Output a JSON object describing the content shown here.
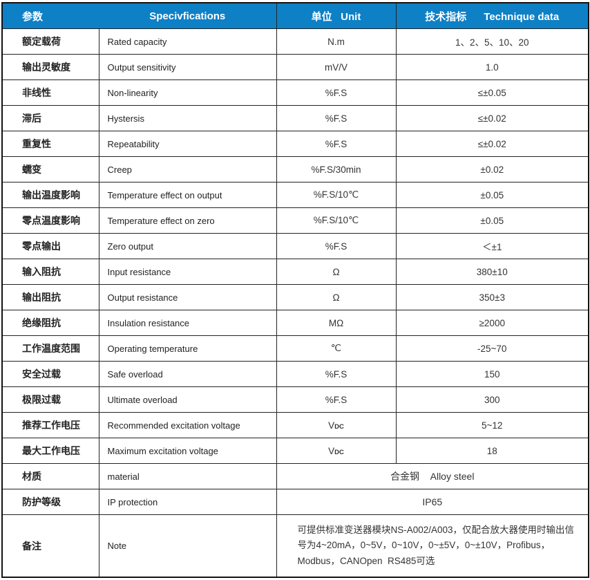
{
  "colors": {
    "header_bg": "#0E80C6",
    "header_text": "#FFFFFF",
    "border": "#1A1A1A",
    "body_text": "#333333"
  },
  "header": {
    "param": "参数",
    "spec": "Specivfications",
    "unit": "单位   Unit",
    "data": "技术指标      Technique data"
  },
  "rows": [
    {
      "cn": "额定载荷",
      "en": "Rated capacity",
      "unit": "N.m",
      "unit_sub": "",
      "value": "1、2、5、10、20"
    },
    {
      "cn": "输出灵敏度",
      "en": "Output sensitivity",
      "unit": "mV/V",
      "unit_sub": "",
      "value": "1.0"
    },
    {
      "cn": "非线性",
      "en": "Non-linearity",
      "unit": "%F.S",
      "unit_sub": "",
      "value": "≤±0.05"
    },
    {
      "cn": "滞后",
      "en": "Hystersis",
      "unit": "%F.S",
      "unit_sub": "",
      "value": "≤±0.02"
    },
    {
      "cn": "重复性",
      "en": "Repeatability",
      "unit": "%F.S",
      "unit_sub": "",
      "value": "≤±0.02"
    },
    {
      "cn": "蠕变",
      "en": "Creep",
      "unit": "%F.S/30min",
      "unit_sub": "",
      "value": "±0.02"
    },
    {
      "cn": "输出温度影响",
      "en": "Temperature effect on output",
      "unit": "%F.S/10℃",
      "unit_sub": "",
      "value": "±0.05"
    },
    {
      "cn": "零点温度影响",
      "en": "Temperature effect on zero",
      "unit": "%F.S/10℃",
      "unit_sub": "",
      "value": "±0.05"
    },
    {
      "cn": "零点输出",
      "en": "Zero output",
      "unit": "%F.S",
      "unit_sub": "",
      "value": "＜±1"
    },
    {
      "cn": "输入阻抗",
      "en": "Input resistance",
      "unit": "Ω",
      "unit_sub": "",
      "value": "380±10"
    },
    {
      "cn": "输出阻抗",
      "en": "Output resistance",
      "unit": "Ω",
      "unit_sub": "",
      "value": "350±3"
    },
    {
      "cn": "绝缘阻抗",
      "en": "Insulation resistance",
      "unit": "MΩ",
      "unit_sub": "",
      "value": "≥2000"
    },
    {
      "cn": "工作温度范围",
      "en": "Operating temperature",
      "unit": "℃",
      "unit_sub": "",
      "value": "-25~70"
    },
    {
      "cn": "安全过载",
      "en": "Safe overload",
      "unit": "%F.S",
      "unit_sub": "",
      "value": "150"
    },
    {
      "cn": "极限过载",
      "en": "Ultimate overload",
      "unit": "%F.S",
      "unit_sub": "",
      "value": "300"
    },
    {
      "cn": "推荐工作电压",
      "en": "Recommended excitation voltage",
      "unit": "V",
      "unit_sub": "DC",
      "value": "5~12"
    },
    {
      "cn": "最大工作电压",
      "en": "Maximum excitation voltage",
      "unit": "V",
      "unit_sub": "DC",
      "value": "18"
    }
  ],
  "material_row": {
    "cn": "材质",
    "en": "material",
    "value": "合金钢    Alloy steel"
  },
  "protection_row": {
    "cn": "防护等级",
    "en": "IP protection",
    "value": "IP65"
  },
  "note_row": {
    "cn": "备注",
    "en": "Note",
    "value": "可提供标准变送器模块NS-A002/A003，仅配合放大器使用时输出信号为4~20mA，0~5V，0~10V，0~±5V，0~±10V，Profibus，Modbus，CANOpen  RS485可选"
  }
}
